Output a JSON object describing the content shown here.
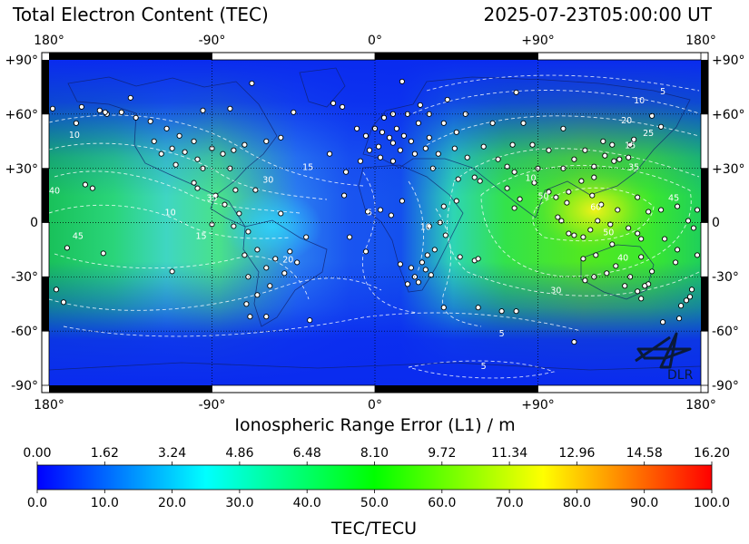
{
  "header": {
    "title": "Total Electron Content (TEC)",
    "timestamp": "2025-07-23T05:00:00 UT"
  },
  "map": {
    "lon_ticks": [
      "180°",
      "-90°",
      "0°",
      "+90°",
      "180°"
    ],
    "lat_ticks": [
      "+90°",
      "+60°",
      "+30°",
      "0",
      "-30°",
      "-60°",
      "-90°"
    ],
    "xlabel": "Ionospheric Range Error (L1) / m",
    "contour_labels": [
      {
        "text": "5",
        "lon": 159,
        "lat": 71
      },
      {
        "text": "10",
        "lon": 146,
        "lat": 66
      },
      {
        "text": "20",
        "lon": 139,
        "lat": 55
      },
      {
        "text": "25",
        "lon": 151,
        "lat": 48
      },
      {
        "text": "15",
        "lon": 141,
        "lat": 41
      },
      {
        "text": "35",
        "lon": 143,
        "lat": 29
      },
      {
        "text": "50",
        "lon": 93,
        "lat": 13
      },
      {
        "text": "60",
        "lon": 122,
        "lat": 7
      },
      {
        "text": "45",
        "lon": 165,
        "lat": 12
      },
      {
        "text": "50",
        "lon": 129,
        "lat": -7
      },
      {
        "text": "40",
        "lon": 137,
        "lat": -21
      },
      {
        "text": "30",
        "lon": 100,
        "lat": -39
      },
      {
        "text": "5",
        "lon": 70,
        "lat": -63
      },
      {
        "text": "5",
        "lon": 60,
        "lat": -81
      },
      {
        "text": "10",
        "lon": 28,
        "lat": -4
      },
      {
        "text": "5",
        "lon": -3,
        "lat": 4
      },
      {
        "text": "10",
        "lon": 86,
        "lat": 23
      },
      {
        "text": "15",
        "lon": -37,
        "lat": 29
      },
      {
        "text": "10",
        "lon": -113,
        "lat": 4
      },
      {
        "text": "15",
        "lon": -96,
        "lat": -9
      },
      {
        "text": "45",
        "lon": -164,
        "lat": -9
      },
      {
        "text": "40",
        "lon": -177,
        "lat": 16
      },
      {
        "text": "35",
        "lon": -90,
        "lat": 12
      },
      {
        "text": "30",
        "lon": -59,
        "lat": 22
      },
      {
        "text": "20",
        "lon": -48,
        "lat": -22
      },
      {
        "text": "10",
        "lon": -166,
        "lat": 47
      }
    ],
    "stations": [
      {
        "lon": -162,
        "lat": 64
      },
      {
        "lon": -152,
        "lat": 62
      },
      {
        "lon": -148,
        "lat": 60
      },
      {
        "lon": -140,
        "lat": 61
      },
      {
        "lon": -132,
        "lat": 58
      },
      {
        "lon": -124,
        "lat": 56
      },
      {
        "lon": -115,
        "lat": 52
      },
      {
        "lon": -108,
        "lat": 48
      },
      {
        "lon": -100,
        "lat": 45
      },
      {
        "lon": -122,
        "lat": 45
      },
      {
        "lon": -118,
        "lat": 38
      },
      {
        "lon": -112,
        "lat": 41
      },
      {
        "lon": -105,
        "lat": 39
      },
      {
        "lon": -98,
        "lat": 35
      },
      {
        "lon": -90,
        "lat": 41
      },
      {
        "lon": -84,
        "lat": 38
      },
      {
        "lon": -78,
        "lat": 40
      },
      {
        "lon": -72,
        "lat": 43
      },
      {
        "lon": -80,
        "lat": 30
      },
      {
        "lon": -95,
        "lat": 30
      },
      {
        "lon": -110,
        "lat": 32
      },
      {
        "lon": -100,
        "lat": 22
      },
      {
        "lon": -98,
        "lat": 19
      },
      {
        "lon": -88,
        "lat": 15
      },
      {
        "lon": -83,
        "lat": 10
      },
      {
        "lon": -77,
        "lat": 18
      },
      {
        "lon": -66,
        "lat": 18
      },
      {
        "lon": -75,
        "lat": 5
      },
      {
        "lon": -70,
        "lat": -5
      },
      {
        "lon": -78,
        "lat": -2
      },
      {
        "lon": -65,
        "lat": -15
      },
      {
        "lon": -72,
        "lat": -18
      },
      {
        "lon": -60,
        "lat": -25
      },
      {
        "lon": -70,
        "lat": -30
      },
      {
        "lon": -55,
        "lat": -20
      },
      {
        "lon": -47,
        "lat": -16
      },
      {
        "lon": -43,
        "lat": -22
      },
      {
        "lon": -50,
        "lat": -28
      },
      {
        "lon": -58,
        "lat": -35
      },
      {
        "lon": -65,
        "lat": -40
      },
      {
        "lon": -71,
        "lat": -45
      },
      {
        "lon": -69,
        "lat": -52
      },
      {
        "lon": -38,
        "lat": -8
      },
      {
        "lon": -52,
        "lat": 5
      },
      {
        "lon": -160,
        "lat": 21
      },
      {
        "lon": -156,
        "lat": 19
      },
      {
        "lon": -170,
        "lat": -14
      },
      {
        "lon": -150,
        "lat": -17
      },
      {
        "lon": -176,
        "lat": -37
      },
      {
        "lon": -172,
        "lat": -44
      },
      {
        "lon": -165,
        "lat": 55
      },
      {
        "lon": -178,
        "lat": 63
      },
      {
        "lon": -23,
        "lat": 66
      },
      {
        "lon": -18,
        "lat": 64
      },
      {
        "lon": -25,
        "lat": 38
      },
      {
        "lon": -16,
        "lat": 28
      },
      {
        "lon": -10,
        "lat": 52
      },
      {
        "lon": -5,
        "lat": 48
      },
      {
        "lon": 0,
        "lat": 52
      },
      {
        "lon": 4,
        "lat": 50
      },
      {
        "lon": 8,
        "lat": 47
      },
      {
        "lon": 12,
        "lat": 52
      },
      {
        "lon": 16,
        "lat": 48
      },
      {
        "lon": 10,
        "lat": 44
      },
      {
        "lon": 20,
        "lat": 45
      },
      {
        "lon": 24,
        "lat": 55
      },
      {
        "lon": 18,
        "lat": 60
      },
      {
        "lon": 10,
        "lat": 60
      },
      {
        "lon": 25,
        "lat": 65
      },
      {
        "lon": 5,
        "lat": 58
      },
      {
        "lon": -3,
        "lat": 40
      },
      {
        "lon": 2,
        "lat": 42
      },
      {
        "lon": 14,
        "lat": 40
      },
      {
        "lon": 22,
        "lat": 38
      },
      {
        "lon": 28,
        "lat": 41
      },
      {
        "lon": 35,
        "lat": 38
      },
      {
        "lon": 30,
        "lat": 47
      },
      {
        "lon": 38,
        "lat": 55
      },
      {
        "lon": 45,
        "lat": 50
      },
      {
        "lon": 50,
        "lat": 60
      },
      {
        "lon": 30,
        "lat": 60
      },
      {
        "lon": -8,
        "lat": 34
      },
      {
        "lon": 3,
        "lat": 36
      },
      {
        "lon": 10,
        "lat": 34
      },
      {
        "lon": -17,
        "lat": 15
      },
      {
        "lon": -4,
        "lat": 6
      },
      {
        "lon": 3,
        "lat": 7
      },
      {
        "lon": 9,
        "lat": 4
      },
      {
        "lon": 15,
        "lat": 12
      },
      {
        "lon": 32,
        "lat": 30
      },
      {
        "lon": 36,
        "lat": 0
      },
      {
        "lon": 38,
        "lat": 9
      },
      {
        "lon": 30,
        "lat": -2
      },
      {
        "lon": 45,
        "lat": 12
      },
      {
        "lon": 39,
        "lat": -7
      },
      {
        "lon": 28,
        "lat": -26
      },
      {
        "lon": 18,
        "lat": -34
      },
      {
        "lon": 22,
        "lat": -30
      },
      {
        "lon": 26,
        "lat": -22
      },
      {
        "lon": 31,
        "lat": -29
      },
      {
        "lon": 24,
        "lat": -33
      },
      {
        "lon": 20,
        "lat": -25
      },
      {
        "lon": 29,
        "lat": -18
      },
      {
        "lon": 33,
        "lat": -15
      },
      {
        "lon": 47,
        "lat": -19
      },
      {
        "lon": 55,
        "lat": -21
      },
      {
        "lon": 57,
        "lat": -20
      },
      {
        "lon": 14,
        "lat": -23
      },
      {
        "lon": 46,
        "lat": 24
      },
      {
        "lon": 55,
        "lat": 25
      },
      {
        "lon": 51,
        "lat": 36
      },
      {
        "lon": 58,
        "lat": 23
      },
      {
        "lon": 44,
        "lat": 41
      },
      {
        "lon": 60,
        "lat": 42
      },
      {
        "lon": 68,
        "lat": 35
      },
      {
        "lon": 73,
        "lat": 31
      },
      {
        "lon": 77,
        "lat": 28
      },
      {
        "lon": 73,
        "lat": 19
      },
      {
        "lon": 80,
        "lat": 13
      },
      {
        "lon": 77,
        "lat": 8
      },
      {
        "lon": 88,
        "lat": 22
      },
      {
        "lon": 90,
        "lat": 30
      },
      {
        "lon": 87,
        "lat": 43
      },
      {
        "lon": 76,
        "lat": 43
      },
      {
        "lon": 65,
        "lat": 55
      },
      {
        "lon": 82,
        "lat": 55
      },
      {
        "lon": 104,
        "lat": 52
      },
      {
        "lon": 96,
        "lat": 40
      },
      {
        "lon": 104,
        "lat": 30
      },
      {
        "lon": 110,
        "lat": 35
      },
      {
        "lon": 116,
        "lat": 40
      },
      {
        "lon": 114,
        "lat": 23
      },
      {
        "lon": 121,
        "lat": 31
      },
      {
        "lon": 121,
        "lat": 25
      },
      {
        "lon": 127,
        "lat": 37
      },
      {
        "lon": 126,
        "lat": 45
      },
      {
        "lon": 132,
        "lat": 34
      },
      {
        "lon": 135,
        "lat": 35
      },
      {
        "lon": 140,
        "lat": 36
      },
      {
        "lon": 141,
        "lat": 43
      },
      {
        "lon": 131,
        "lat": 43
      },
      {
        "lon": 143,
        "lat": 46
      },
      {
        "lon": 153,
        "lat": 59
      },
      {
        "lon": 158,
        "lat": 53
      },
      {
        "lon": 120,
        "lat": 15
      },
      {
        "lon": 125,
        "lat": 10
      },
      {
        "lon": 107,
        "lat": 17
      },
      {
        "lon": 106,
        "lat": 11
      },
      {
        "lon": 100,
        "lat": 14
      },
      {
        "lon": 96,
        "lat": 17
      },
      {
        "lon": 101,
        "lat": 3
      },
      {
        "lon": 103,
        "lat": 1
      },
      {
        "lon": 110,
        "lat": -7
      },
      {
        "lon": 107,
        "lat": -6
      },
      {
        "lon": 115,
        "lat": -8
      },
      {
        "lon": 119,
        "lat": -4
      },
      {
        "lon": 123,
        "lat": 1
      },
      {
        "lon": 130,
        "lat": -1
      },
      {
        "lon": 140,
        "lat": -3
      },
      {
        "lon": 145,
        "lat": -6
      },
      {
        "lon": 147,
        "lat": -9
      },
      {
        "lon": 151,
        "lat": 6
      },
      {
        "lon": 158,
        "lat": 7
      },
      {
        "lon": 167,
        "lat": 9
      },
      {
        "lon": 173,
        "lat": 1
      },
      {
        "lon": 176,
        "lat": -3
      },
      {
        "lon": 178,
        "lat": 7
      },
      {
        "lon": 134,
        "lat": 7
      },
      {
        "lon": 145,
        "lat": 14
      },
      {
        "lon": 160,
        "lat": -9
      },
      {
        "lon": 167,
        "lat": -15
      },
      {
        "lon": 166,
        "lat": -22
      },
      {
        "lon": 178,
        "lat": -18
      },
      {
        "lon": 116,
        "lat": -32
      },
      {
        "lon": 115,
        "lat": -20
      },
      {
        "lon": 122,
        "lat": -18
      },
      {
        "lon": 131,
        "lat": -12
      },
      {
        "lon": 133,
        "lat": -24
      },
      {
        "lon": 138,
        "lat": -35
      },
      {
        "lon": 145,
        "lat": -38
      },
      {
        "lon": 151,
        "lat": -34
      },
      {
        "lon": 153,
        "lat": -27
      },
      {
        "lon": 147,
        "lat": -19
      },
      {
        "lon": 149,
        "lat": -35
      },
      {
        "lon": 147,
        "lat": -42
      },
      {
        "lon": 141,
        "lat": -30
      },
      {
        "lon": 128,
        "lat": -28
      },
      {
        "lon": 121,
        "lat": -30
      },
      {
        "lon": 175,
        "lat": -37
      },
      {
        "lon": 174,
        "lat": -41
      },
      {
        "lon": 172,
        "lat": -43
      },
      {
        "lon": 169,
        "lat": -46
      },
      {
        "lon": 168,
        "lat": -53
      },
      {
        "lon": 159,
        "lat": -55
      },
      {
        "lon": 78,
        "lat": -49
      },
      {
        "lon": 70,
        "lat": -49
      },
      {
        "lon": 38,
        "lat": -47
      },
      {
        "lon": 57,
        "lat": -47
      },
      {
        "lon": 110,
        "lat": -66
      },
      {
        "lon": -14,
        "lat": -8
      },
      {
        "lon": -5,
        "lat": -16
      },
      {
        "lon": -60,
        "lat": -52
      },
      {
        "lon": -36,
        "lat": -54
      },
      {
        "lon": -112,
        "lat": -27
      },
      {
        "lon": -90,
        "lat": -1
      },
      {
        "lon": -149,
        "lat": 61
      },
      {
        "lon": -135,
        "lat": 69
      },
      {
        "lon": -95,
        "lat": 62
      },
      {
        "lon": -80,
        "lat": 63
      },
      {
        "lon": -52,
        "lat": 47
      },
      {
        "lon": -60,
        "lat": 45
      },
      {
        "lon": -45,
        "lat": 61
      },
      {
        "lon": -68,
        "lat": 77
      },
      {
        "lon": 15,
        "lat": 78
      },
      {
        "lon": 40,
        "lat": 68
      },
      {
        "lon": 78,
        "lat": 72
      }
    ]
  },
  "colorbar": {
    "top_ticks": [
      "0.00",
      "1.62",
      "3.24",
      "4.86",
      "6.48",
      "8.10",
      "9.72",
      "11.34",
      "12.96",
      "14.58",
      "16.20"
    ],
    "bottom_ticks": [
      "0.0",
      "10.0",
      "20.0",
      "30.0",
      "40.0",
      "50.0",
      "60.0",
      "70.0",
      "80.0",
      "90.0",
      "100.0"
    ],
    "xlabel": "TEC/TECU",
    "colors": [
      "#0000ff",
      "#00ffff",
      "#00ff00",
      "#ffff00",
      "#ff0000"
    ]
  },
  "logo": {
    "text": "DLR"
  }
}
